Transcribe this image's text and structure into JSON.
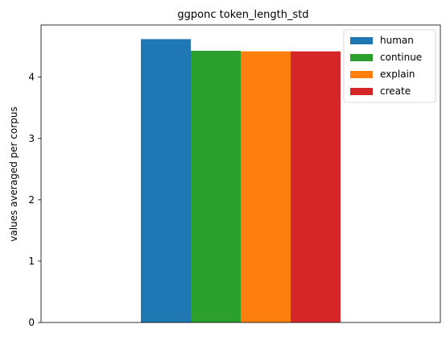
{
  "chart_data": {
    "type": "bar",
    "title": "ggponc token_length_std",
    "xlabel": "",
    "ylabel": "values averaged per corpus",
    "ylim": [
      0,
      4.85
    ],
    "yticks": [
      0,
      1,
      2,
      3,
      4
    ],
    "grid": false,
    "legend_placement": "top-right",
    "categories": [
      ""
    ],
    "series": [
      {
        "name": "human",
        "values": [
          4.62
        ],
        "color": "#1f77b4"
      },
      {
        "name": "continue",
        "values": [
          4.43
        ],
        "color": "#2ca02c"
      },
      {
        "name": "explain",
        "values": [
          4.42
        ],
        "color": "#ff7f0e"
      },
      {
        "name": "create",
        "values": [
          4.42
        ],
        "color": "#d62728"
      }
    ]
  }
}
